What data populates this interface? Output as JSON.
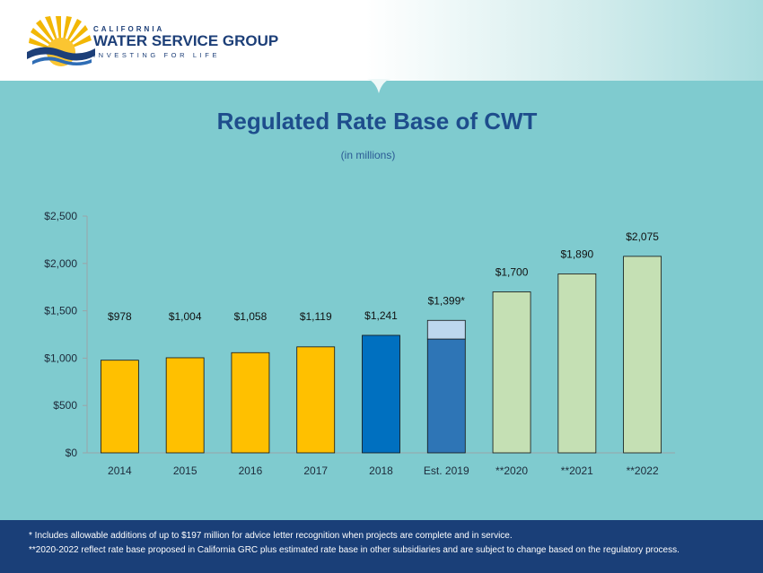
{
  "logo": {
    "line1": "CALIFORNIA",
    "line2": "WATER SERVICE GROUP",
    "line3": "INVESTING FOR LIFE"
  },
  "colors": {
    "background": "#7fcbcf",
    "gold": "#ffc000",
    "blue": "#0070c0",
    "blue_mid": "#2e75b6",
    "light_blue": "#bdd7ee",
    "light_green": "#c5e0b4",
    "footer": "#1a3f78"
  },
  "chart_data": {
    "type": "bar",
    "title": "Regulated Rate Base of CWT",
    "subtitle": "(in millions)",
    "categories": [
      "2014",
      "2015",
      "2016",
      "2017",
      "2018",
      "Est. 2019",
      "**2020",
      "**2021",
      "**2022"
    ],
    "values": [
      978,
      1004,
      1058,
      1119,
      1241,
      1399,
      1700,
      1890,
      2075
    ],
    "data_labels": [
      "$978",
      "$1,004",
      "$1,058",
      "$1,119",
      "$1,241",
      "$1,399*",
      "$1,700",
      "$1,890",
      "$2,075"
    ],
    "stacked_2019": {
      "base": 1202,
      "advice_letter_addition": 197
    },
    "bar_colors": [
      "#ffc000",
      "#ffc000",
      "#ffc000",
      "#ffc000",
      "#0070c0",
      "#2e75b6",
      "#c5e0b4",
      "#c5e0b4",
      "#c5e0b4"
    ],
    "yticks": [
      0,
      500,
      1000,
      1500,
      2000,
      2500
    ],
    "ytick_labels": [
      "$0",
      "$500",
      "$1,000",
      "$1,500",
      "$2,000",
      "$2,500"
    ],
    "ylim": [
      0,
      2500
    ],
    "grid": false,
    "legend": "none"
  },
  "footer": {
    "note1": "* Includes allowable additions of up to $197 million for advice letter recognition when projects are complete and in service.",
    "note2": "**2020-2022 reflect rate base proposed in California GRC plus estimated rate base in other subsidiaries and are subject to change based on the regulatory process."
  }
}
